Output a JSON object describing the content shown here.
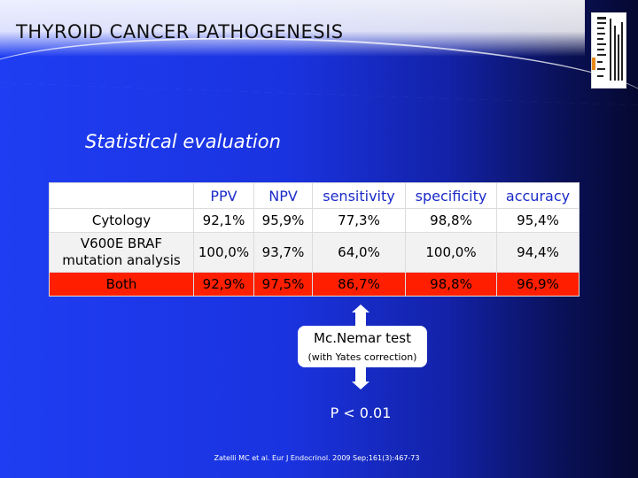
{
  "slide": {
    "title": "THYROID CANCER PATHOGENESIS",
    "section_title": "Statistical evaluation"
  },
  "table": {
    "headers": [
      "",
      "PPV",
      "NPV",
      "sensitivity",
      "specificity",
      "accuracy"
    ],
    "rows": [
      {
        "label": "Cytology",
        "values": [
          "92,1%",
          "95,9%",
          "77,3%",
          "98,8%",
          "95,4%"
        ]
      },
      {
        "label_line1": "V600E BRAF",
        "label_line2": "mutation analysis",
        "values": [
          "100,0%",
          "93,7%",
          "64,0%",
          "100,0%",
          "94,4%"
        ]
      },
      {
        "label": "Both",
        "values": [
          "92,9%",
          "97,5%",
          "86,7%",
          "98,8%",
          "96,9%"
        ]
      }
    ]
  },
  "test": {
    "title": "Mc.Nemar test",
    "subtitle": "(with Yates correction)",
    "p_value": "P < 0.01"
  },
  "reference": "Zatelli MC et al. Eur J Endocrinol. 2009 Sep;161(3):467-73",
  "colors": {
    "background": "#1a33e0",
    "header_text": "#1a2ac8",
    "highlight_row": "#ff1f00"
  }
}
